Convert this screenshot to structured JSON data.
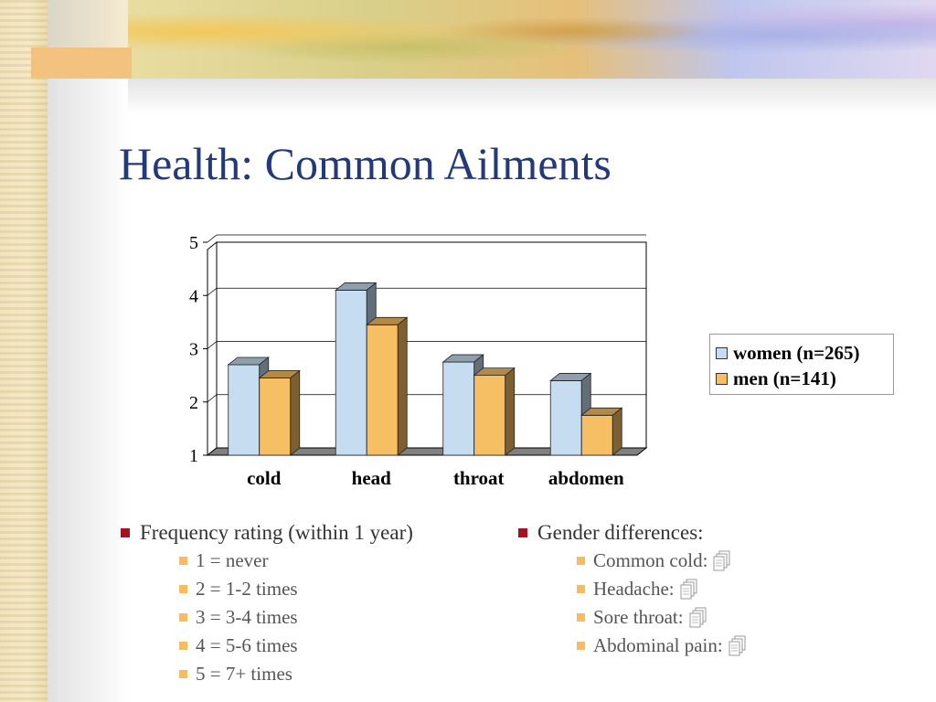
{
  "title": "Health: Common Ailments",
  "chart_data": {
    "type": "bar",
    "categories": [
      "cold",
      "head",
      "throat",
      "abdomen"
    ],
    "series": [
      {
        "name": "women (n=265)",
        "values": [
          2.7,
          4.1,
          2.75,
          2.4
        ],
        "color": "#c6dcf0"
      },
      {
        "name": "men (n=141)",
        "values": [
          2.45,
          3.45,
          2.5,
          1.75
        ],
        "color": "#f7bf64"
      }
    ],
    "ylim": [
      1,
      5
    ],
    "yticks": [
      1,
      2,
      3,
      4,
      5
    ],
    "grid": true,
    "legend_position": "right",
    "three_d": true
  },
  "left_list": {
    "heading": "Frequency rating (within 1 year)",
    "items": [
      "1 = never",
      "2 = 1-2 times",
      "3 = 3-4 times",
      "4 = 5-6 times",
      "5 = 7+ times"
    ]
  },
  "right_list": {
    "heading": "Gender differences:",
    "items": [
      {
        "label": "Common cold:",
        "icon": "document-icon"
      },
      {
        "label": "Headache:",
        "icon": "document-icon"
      },
      {
        "label": "Sore throat:",
        "icon": "document-icon"
      },
      {
        "label": "Abdominal pain:",
        "icon": "document-icon"
      }
    ]
  },
  "colors": {
    "title": "#23397a",
    "bullet_main": "#a5121f",
    "bullet_sub": "#f7bb62"
  }
}
